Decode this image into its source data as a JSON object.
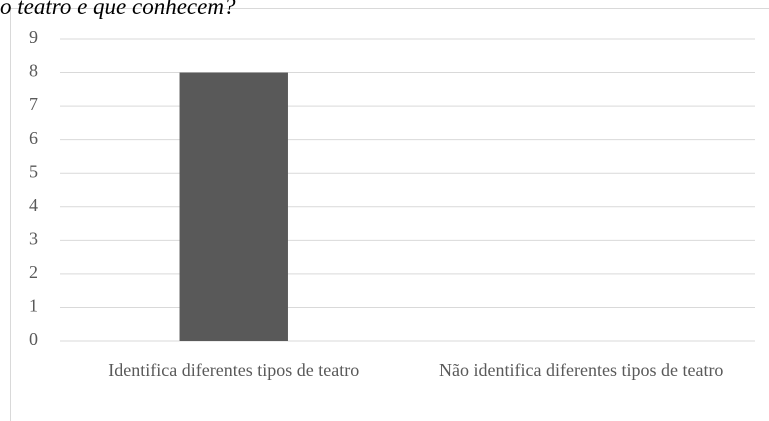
{
  "chart_data": {
    "type": "bar",
    "title": "o teatro e que conhecem?",
    "categories": [
      "Identifica diferentes tipos de teatro",
      "Não identifica diferentes tipos de teatro"
    ],
    "values": [
      8,
      0
    ],
    "color": "#595959",
    "ylim": [
      0,
      9
    ],
    "yticks": [
      0,
      1,
      2,
      3,
      4,
      5,
      6,
      7,
      8,
      9
    ],
    "grid": true
  }
}
